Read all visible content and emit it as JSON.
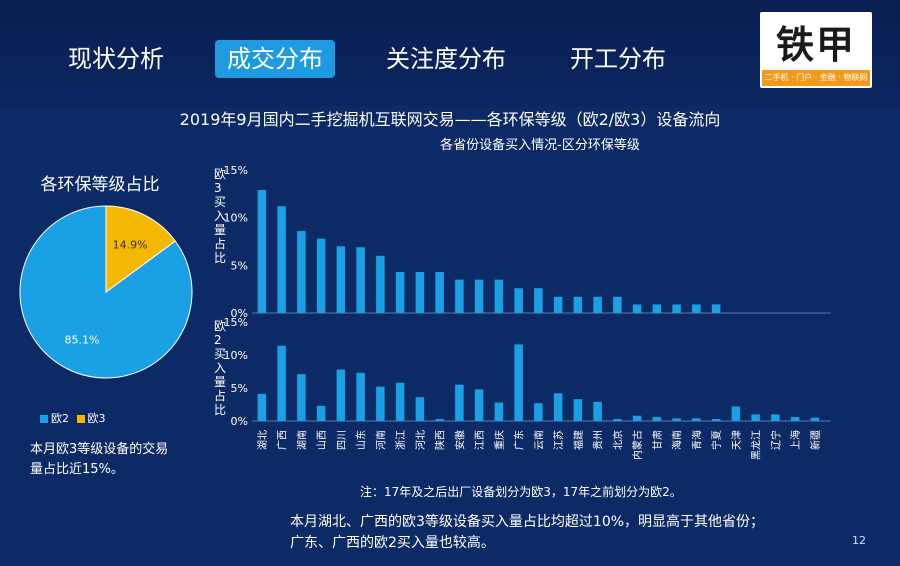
{
  "nav": {
    "tabs": [
      {
        "label": "现状分析"
      },
      {
        "label": "成交分布",
        "active": true
      },
      {
        "label": "关注度分布"
      },
      {
        "label": "开工分布"
      }
    ]
  },
  "logo": {
    "text": "铁甲",
    "subtitle": "二手机 · 门户 · 金融 · 物联网"
  },
  "title": "2019年9月国内二手挖掘机互联网交易——各环保等级（欧2/欧3）设备流向",
  "subtitle": "各省份设备买入情况-区分环保等级",
  "pie": {
    "title": "各环保等级占比",
    "slices": [
      {
        "name": "欧2",
        "value": 85.1,
        "label": "85.1%",
        "color": "#1aa0e4"
      },
      {
        "name": "欧3",
        "value": 14.9,
        "label": "14.9%",
        "color": "#f5b800"
      }
    ],
    "note": "本月欧3等级设备的交易量占比近15%。"
  },
  "chart_data": [
    {
      "type": "pie",
      "title": "各环保等级占比",
      "categories": [
        "欧2",
        "欧3"
      ],
      "values": [
        85.1,
        14.9
      ]
    },
    {
      "type": "bar",
      "ylabel": "欧3买入量占比",
      "ylim": [
        0,
        15
      ],
      "ytick_labels": [
        "15%",
        "10%",
        "5%",
        "0%"
      ],
      "categories": [
        "湖北",
        "广西",
        "湖南",
        "山西",
        "四川",
        "山东",
        "河南",
        "浙江",
        "河北",
        "陕西",
        "安徽",
        "江西",
        "重庆",
        "广东",
        "云南",
        "江苏",
        "福建",
        "贵州",
        "北京",
        "内蒙古",
        "甘肃",
        "海南",
        "青海",
        "宁夏"
      ],
      "values": [
        12.9,
        11.2,
        8.6,
        7.8,
        7.0,
        6.9,
        6.0,
        4.3,
        4.3,
        4.3,
        3.5,
        3.5,
        3.5,
        2.6,
        2.6,
        1.7,
        1.7,
        1.7,
        1.7,
        0.9,
        0.9,
        0.9,
        0.9,
        0.9
      ],
      "color": "#1aa0e4"
    },
    {
      "type": "bar",
      "ylabel": "欧2买入量占比",
      "ylim": [
        0,
        15
      ],
      "ytick_labels": [
        "15%",
        "10%",
        "5%",
        "0%"
      ],
      "categories": [
        "湖北",
        "广西",
        "湖南",
        "山西",
        "四川",
        "山东",
        "河南",
        "浙江",
        "河北",
        "陕西",
        "安徽",
        "江西",
        "重庆",
        "广东",
        "云南",
        "江苏",
        "福建",
        "贵州",
        "北京",
        "内蒙古",
        "甘肃",
        "海南",
        "青海",
        "宁夏",
        "天津",
        "黑龙江",
        "辽宁",
        "上海",
        "新疆"
      ],
      "values": [
        4.1,
        11.4,
        7.1,
        2.3,
        7.8,
        7.3,
        5.2,
        5.8,
        3.6,
        0.3,
        5.5,
        4.8,
        2.8,
        11.6,
        2.7,
        4.2,
        3.3,
        2.9,
        0.3,
        0.8,
        0.6,
        0.4,
        0.4,
        0.3,
        2.2,
        1.0,
        1.0,
        0.6,
        0.5
      ],
      "color": "#1aa0e4"
    }
  ],
  "footnote": "注：17年及之后出厂设备划分为欧3，17年之前划分为欧2。",
  "summary": {
    "line1": "本月湖北、广西的欧3等级设备买入量占比均超过10%，明显高于其他省份；",
    "line2": "广东、广西的欧2买入量也较高。"
  },
  "page_number": "12"
}
